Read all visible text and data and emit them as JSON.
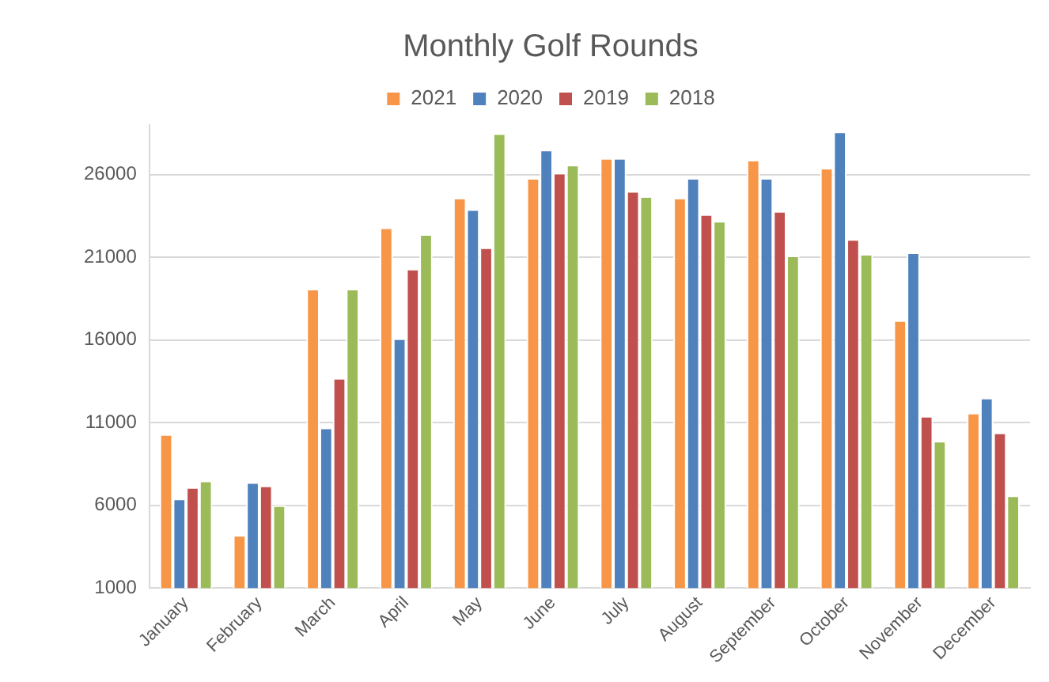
{
  "chart_data": {
    "type": "bar",
    "title": "Monthly Golf Rounds",
    "categories": [
      "January",
      "February",
      "March",
      "April",
      "May",
      "June",
      "July",
      "August",
      "September",
      "October",
      "November",
      "December"
    ],
    "series": [
      {
        "name": "2021",
        "color": "#f79646",
        "values": [
          10300,
          4200,
          19100,
          22800,
          24600,
          25800,
          27000,
          24600,
          26900,
          26400,
          17200,
          11600
        ]
      },
      {
        "name": "2020",
        "color": "#4f81bd",
        "values": [
          6400,
          7400,
          10700,
          16100,
          23900,
          27500,
          27000,
          25800,
          25800,
          28600,
          21300,
          12500
        ]
      },
      {
        "name": "2019",
        "color": "#c0504d",
        "values": [
          7100,
          7200,
          13700,
          20300,
          21600,
          26100,
          25000,
          23600,
          23800,
          22100,
          11400,
          10400
        ]
      },
      {
        "name": "2018",
        "color": "#9bbb59",
        "values": [
          7500,
          6000,
          19100,
          22400,
          28500,
          26600,
          24700,
          23200,
          21100,
          21200,
          9900,
          6600
        ]
      }
    ],
    "ylim": [
      1000,
      29000
    ],
    "yticks": [
      1000,
      6000,
      11000,
      16000,
      21000,
      26000
    ],
    "grid": "y",
    "legend": "top"
  }
}
